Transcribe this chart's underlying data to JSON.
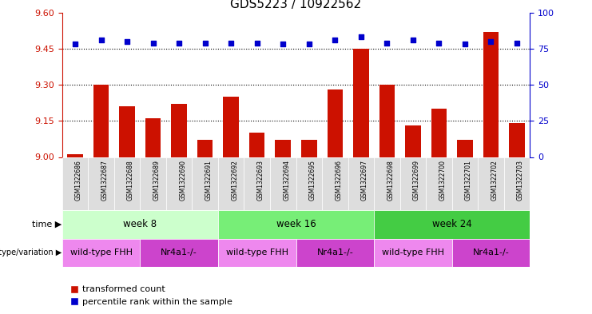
{
  "title": "GDS5223 / 10922562",
  "samples": [
    "GSM1322686",
    "GSM1322687",
    "GSM1322688",
    "GSM1322689",
    "GSM1322690",
    "GSM1322691",
    "GSM1322692",
    "GSM1322693",
    "GSM1322694",
    "GSM1322695",
    "GSM1322696",
    "GSM1322697",
    "GSM1322698",
    "GSM1322699",
    "GSM1322700",
    "GSM1322701",
    "GSM1322702",
    "GSM1322703"
  ],
  "red_values": [
    9.01,
    9.3,
    9.21,
    9.16,
    9.22,
    9.07,
    9.25,
    9.1,
    9.07,
    9.07,
    9.28,
    9.45,
    9.3,
    9.13,
    9.2,
    9.07,
    9.52,
    9.14
  ],
  "blue_values": [
    78,
    81,
    80,
    79,
    79,
    79,
    79,
    79,
    78,
    78,
    81,
    83,
    79,
    81,
    79,
    78,
    80,
    79
  ],
  "ylim_left": [
    9.0,
    9.6
  ],
  "ylim_right": [
    0,
    100
  ],
  "yticks_left": [
    9.0,
    9.15,
    9.3,
    9.45,
    9.6
  ],
  "yticks_right": [
    0,
    25,
    50,
    75,
    100
  ],
  "grid_values": [
    9.15,
    9.3,
    9.45
  ],
  "bar_color": "#cc1100",
  "dot_color": "#0000cc",
  "time_groups": [
    {
      "label": "week 8",
      "start": 0,
      "end": 6,
      "color": "#ccffcc"
    },
    {
      "label": "week 16",
      "start": 6,
      "end": 12,
      "color": "#77ee77"
    },
    {
      "label": "week 24",
      "start": 12,
      "end": 18,
      "color": "#44cc44"
    }
  ],
  "genotype_groups": [
    {
      "label": "wild-type FHH",
      "start": 0,
      "end": 3,
      "color": "#ee88ee"
    },
    {
      "label": "Nr4a1-/-",
      "start": 3,
      "end": 6,
      "color": "#cc44cc"
    },
    {
      "label": "wild-type FHH",
      "start": 6,
      "end": 9,
      "color": "#ee88ee"
    },
    {
      "label": "Nr4a1-/-",
      "start": 9,
      "end": 12,
      "color": "#cc44cc"
    },
    {
      "label": "wild-type FHH",
      "start": 12,
      "end": 15,
      "color": "#ee88ee"
    },
    {
      "label": "Nr4a1-/-",
      "start": 15,
      "end": 18,
      "color": "#cc44cc"
    }
  ],
  "legend_labels": [
    "transformed count",
    "percentile rank within the sample"
  ],
  "legend_colors": [
    "#cc1100",
    "#0000cc"
  ],
  "tick_label_color": "#888888",
  "sample_bg_color": "#dddddd"
}
